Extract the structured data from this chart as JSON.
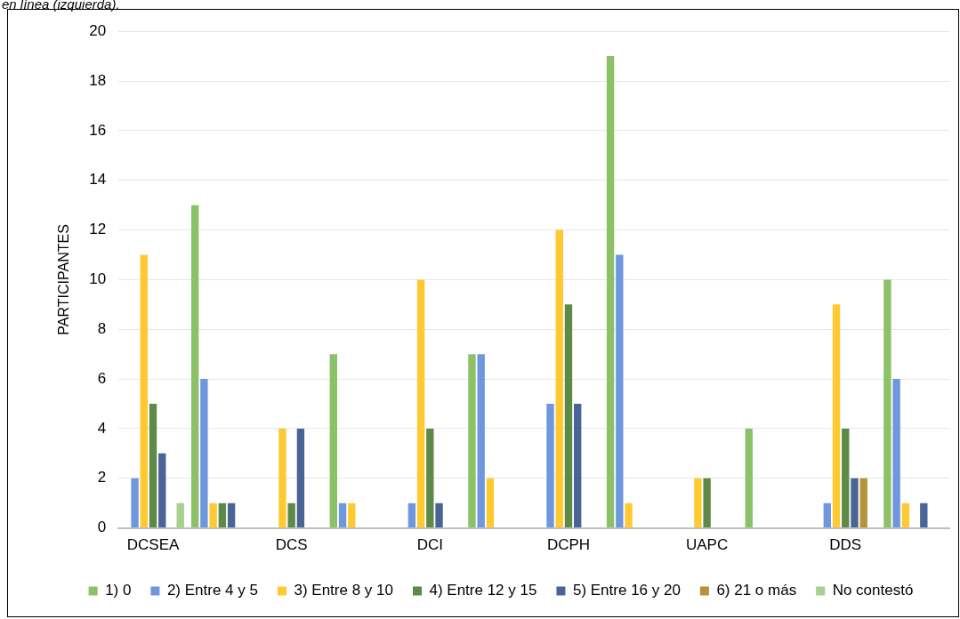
{
  "chart_data": {
    "type": "bar",
    "ylabel": "PARTICIPANTES",
    "annotations": [
      "en línea (izquierda)."
    ],
    "categories": [
      "DCSEA",
      null,
      "DCS",
      null,
      "DCI",
      null,
      "DCPH",
      null,
      "UAPC",
      null,
      "DDS",
      null
    ],
    "series": [
      {
        "name": "1) 0",
        "color": "#8cc168",
        "values": [
          0,
          13,
          0,
          7,
          0,
          7,
          0,
          19,
          0,
          4,
          0,
          10
        ]
      },
      {
        "name": "2) Entre 4 y 5",
        "color": "#6f97de",
        "values": [
          2,
          6,
          0,
          1,
          1,
          7,
          5,
          11,
          0,
          0,
          1,
          6
        ]
      },
      {
        "name": "3) Entre 8 y 10",
        "color": "#ffc932",
        "values": [
          11,
          1,
          4,
          1,
          10,
          2,
          12,
          1,
          2,
          0,
          9,
          1
        ]
      },
      {
        "name": "4) Entre 12 y 15",
        "color": "#5e8a48",
        "values": [
          5,
          1,
          1,
          0,
          4,
          0,
          9,
          0,
          2,
          0,
          4,
          0
        ]
      },
      {
        "name": "5) Entre 16 y 20",
        "color": "#4b6496",
        "values": [
          3,
          1,
          4,
          0,
          1,
          0,
          5,
          0,
          0,
          0,
          2,
          1
        ]
      },
      {
        "name": "6) 21 o más",
        "color": "#b8923a",
        "values": [
          0,
          0,
          0,
          0,
          0,
          0,
          0,
          0,
          0,
          0,
          2,
          0
        ]
      },
      {
        "name": "No contestó",
        "color": "#a8d08d",
        "values": [
          1,
          0,
          0,
          0,
          0,
          0,
          0,
          0,
          0,
          0,
          0,
          0
        ]
      }
    ],
    "ylim": [
      0,
      20
    ],
    "yticks": [
      0,
      2,
      4,
      6,
      8,
      10,
      12,
      14,
      16,
      18,
      20
    ],
    "grid": "y",
    "legend": "bottom"
  }
}
